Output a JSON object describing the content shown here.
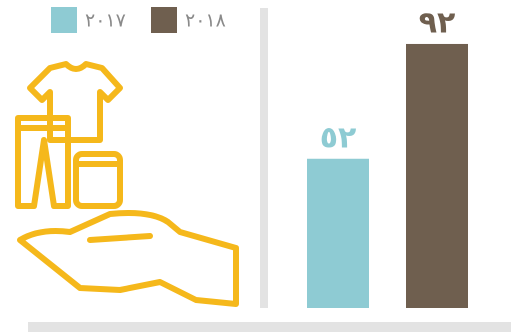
{
  "chart_data": {
    "type": "bar",
    "series": [
      {
        "name": "٢٠١٧",
        "color": "#8ecbd3",
        "values": [
          52
        ],
        "value_labels": [
          "٥٢"
        ]
      },
      {
        "name": "٢٠١٨",
        "color": "#6f5f4f",
        "values": [
          92
        ],
        "value_labels": [
          "٩٢"
        ]
      }
    ]
  }
}
